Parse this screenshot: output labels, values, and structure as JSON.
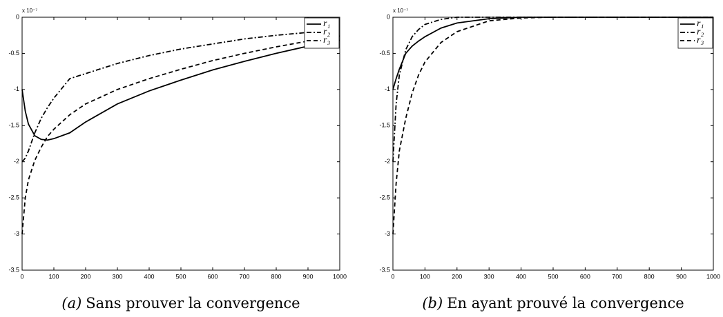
{
  "chart_data": [
    {
      "type": "line",
      "caption_label": "(a)",
      "caption": "Sans prouver la convergence",
      "axis_multiplier": "x 10⁻⁷",
      "x": [
        0,
        10,
        20,
        40,
        60,
        80,
        100,
        150,
        200,
        300,
        400,
        500,
        600,
        700,
        800,
        900,
        1000
      ],
      "series": [
        {
          "name": "r₁",
          "color": "#000000",
          "linestyle": "solid",
          "values": [
            -1.0,
            -1.3,
            -1.48,
            -1.64,
            -1.69,
            -1.7,
            -1.68,
            -1.6,
            -1.45,
            -1.2,
            -1.02,
            -0.87,
            -0.73,
            -0.61,
            -0.5,
            -0.4,
            -0.32
          ]
        },
        {
          "name": "r₂",
          "color": "#000000",
          "linestyle": "dashdot",
          "values": [
            -2.0,
            -1.95,
            -1.85,
            -1.6,
            -1.4,
            -1.25,
            -1.12,
            -0.85,
            -0.78,
            -0.64,
            -0.53,
            -0.44,
            -0.37,
            -0.3,
            -0.25,
            -0.21,
            -0.18
          ]
        },
        {
          "name": "r₃",
          "color": "#000000",
          "linestyle": "dashed",
          "values": [
            -3.0,
            -2.5,
            -2.25,
            -1.98,
            -1.8,
            -1.65,
            -1.55,
            -1.35,
            -1.2,
            -1.0,
            -0.85,
            -0.72,
            -0.6,
            -0.5,
            -0.41,
            -0.33,
            -0.26
          ]
        }
      ],
      "xlim": [
        0,
        1000
      ],
      "xticks": [
        0,
        100,
        200,
        300,
        400,
        500,
        600,
        700,
        800,
        900,
        1000
      ],
      "ylim": [
        -3.5,
        0
      ],
      "yticks": [
        -3.5,
        -3,
        -2.5,
        -2,
        -1.5,
        -1,
        -0.5,
        0
      ],
      "legend": "upper right"
    },
    {
      "type": "line",
      "caption_label": "(b)",
      "caption": "En ayant prouvé la convergence",
      "axis_multiplier": "x 10⁻⁷",
      "x": [
        0,
        10,
        20,
        40,
        60,
        80,
        100,
        150,
        200,
        300,
        400,
        500,
        600,
        700,
        800,
        900,
        1000
      ],
      "series": [
        {
          "name": "r₁",
          "color": "#000000",
          "linestyle": "solid",
          "values": [
            -1.0,
            -0.85,
            -0.72,
            -0.5,
            -0.4,
            -0.33,
            -0.27,
            -0.15,
            -0.08,
            -0.02,
            0,
            0,
            0,
            0,
            0,
            0,
            0
          ]
        },
        {
          "name": "r₂",
          "color": "#000000",
          "linestyle": "dashdot",
          "values": [
            -2.0,
            -1.2,
            -0.8,
            -0.45,
            -0.27,
            -0.17,
            -0.1,
            -0.03,
            0,
            0,
            0,
            0,
            0,
            0,
            0,
            0,
            0
          ]
        },
        {
          "name": "r₃",
          "color": "#000000",
          "linestyle": "dashed",
          "values": [
            -3.0,
            -2.3,
            -1.85,
            -1.4,
            -1.05,
            -0.8,
            -0.62,
            -0.35,
            -0.2,
            -0.05,
            -0.01,
            0,
            0,
            0,
            0,
            0,
            0
          ]
        }
      ],
      "xlim": [
        0,
        1000
      ],
      "xticks": [
        0,
        100,
        200,
        300,
        400,
        500,
        600,
        700,
        800,
        900,
        1000
      ],
      "ylim": [
        -3.5,
        0
      ],
      "yticks": [
        -3.5,
        -3,
        -2.5,
        -2,
        -1.5,
        -1,
        -0.5,
        0
      ],
      "legend": "upper right"
    }
  ]
}
